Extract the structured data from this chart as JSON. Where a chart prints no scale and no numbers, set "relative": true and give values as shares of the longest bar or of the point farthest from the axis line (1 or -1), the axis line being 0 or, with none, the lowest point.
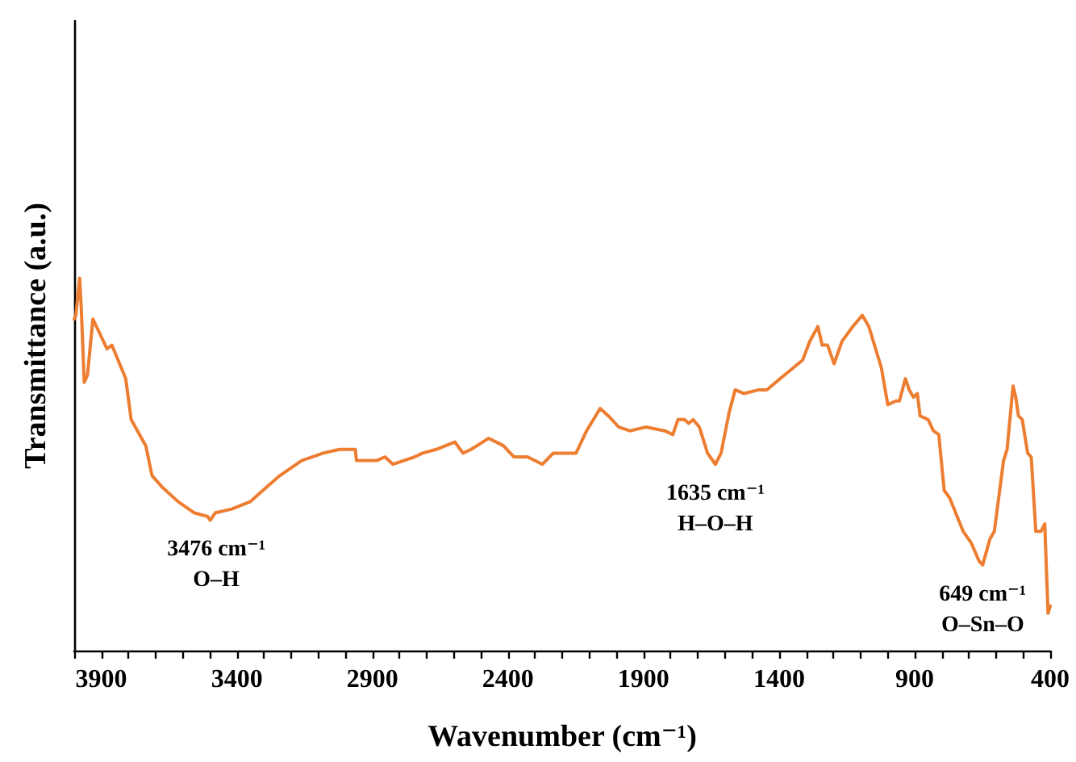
{
  "chart_data": {
    "type": "line",
    "xlabel": "Wavenumber (cm⁻¹)",
    "ylabel": "Transmittance (a.u.)",
    "relative": true,
    "x": [
      4000,
      3994,
      3980,
      3974,
      3963,
      3951,
      3931,
      3879,
      3861,
      3810,
      3790,
      3736,
      3713,
      3677,
      3617,
      3558,
      3508,
      3498,
      3479,
      3419,
      3350,
      3320,
      3241,
      3161,
      3082,
      3022,
      2963,
      2959,
      2884,
      2854,
      2824,
      2784,
      2744,
      2715,
      2665,
      2596,
      2566,
      2536,
      2471,
      2417,
      2378,
      2328,
      2273,
      2233,
      2199,
      2149,
      2110,
      2060,
      2030,
      1991,
      1951,
      1892,
      1822,
      1792,
      1773,
      1749,
      1733,
      1717,
      1694,
      1664,
      1635,
      1614,
      1584,
      1562,
      1529,
      1475,
      1445,
      1396,
      1346,
      1313,
      1287,
      1257,
      1241,
      1221,
      1197,
      1168,
      1128,
      1093,
      1069,
      1023,
      999,
      969,
      956,
      934,
      920,
      904,
      890,
      880,
      850,
      831,
      811,
      791,
      771,
      721,
      692,
      662,
      649,
      622,
      606,
      572,
      559,
      537,
      527,
      517,
      503,
      483,
      470,
      453,
      434,
      420,
      408,
      400
    ],
    "series": [
      {
        "color": "#ed7d31",
        "values": [
          0.89,
          0.9,
          1.0,
          0.92,
          0.72,
          0.74,
          0.89,
          0.81,
          0.82,
          0.73,
          0.62,
          0.55,
          0.47,
          0.44,
          0.4,
          0.37,
          0.36,
          0.35,
          0.37,
          0.38,
          0.4,
          0.42,
          0.47,
          0.51,
          0.53,
          0.54,
          0.54,
          0.51,
          0.51,
          0.52,
          0.5,
          0.51,
          0.52,
          0.53,
          0.54,
          0.56,
          0.53,
          0.54,
          0.57,
          0.55,
          0.52,
          0.52,
          0.5,
          0.53,
          0.53,
          0.53,
          0.59,
          0.65,
          0.63,
          0.6,
          0.59,
          0.6,
          0.59,
          0.58,
          0.62,
          0.62,
          0.61,
          0.62,
          0.6,
          0.53,
          0.5,
          0.53,
          0.64,
          0.7,
          0.69,
          0.7,
          0.7,
          0.73,
          0.76,
          0.78,
          0.83,
          0.87,
          0.82,
          0.82,
          0.77,
          0.83,
          0.87,
          0.9,
          0.87,
          0.76,
          0.66,
          0.67,
          0.67,
          0.73,
          0.7,
          0.68,
          0.69,
          0.63,
          0.62,
          0.59,
          0.58,
          0.43,
          0.41,
          0.32,
          0.29,
          0.24,
          0.23,
          0.3,
          0.32,
          0.51,
          0.54,
          0.71,
          0.68,
          0.63,
          0.62,
          0.53,
          0.52,
          0.32,
          0.32,
          0.34,
          0.1,
          0.12
        ]
      }
    ],
    "xlim": [
      4000,
      400
    ],
    "xticks": [
      {
        "value": 4000,
        "label": null
      },
      3900,
      {
        "value": 3800,
        "label": null
      },
      {
        "value": 3700,
        "label": null
      },
      {
        "value": 3600,
        "label": null
      },
      {
        "value": 3500,
        "label": null
      },
      3400,
      {
        "value": 3300,
        "label": null
      },
      {
        "value": 3200,
        "label": null
      },
      {
        "value": 3100,
        "label": null
      },
      {
        "value": 3000,
        "label": null
      },
      2900,
      {
        "value": 2800,
        "label": null
      },
      {
        "value": 2700,
        "label": null
      },
      {
        "value": 2600,
        "label": null
      },
      {
        "value": 2500,
        "label": null
      },
      2400,
      {
        "value": 2300,
        "label": null
      },
      {
        "value": 2200,
        "label": null
      },
      {
        "value": 2100,
        "label": null
      },
      {
        "value": 2000,
        "label": null
      },
      1900,
      {
        "value": 1800,
        "label": null
      },
      {
        "value": 1700,
        "label": null
      },
      {
        "value": 1600,
        "label": null
      },
      {
        "value": 1500,
        "label": null
      },
      1400,
      {
        "value": 1300,
        "label": null
      },
      {
        "value": 1200,
        "label": null
      },
      {
        "value": 1100,
        "label": null
      },
      {
        "value": 1000,
        "label": null
      },
      900,
      {
        "value": 800,
        "label": null
      },
      {
        "value": 700,
        "label": null
      },
      {
        "value": 600,
        "label": null
      },
      {
        "value": 500,
        "label": null
      },
      400
    ],
    "annotations": [
      {
        "text": "3476 cm⁻¹\nO–H",
        "x": 3476,
        "y": 0.35
      },
      {
        "text": "1635 cm⁻¹\nH–O–H",
        "x": 1635,
        "y": 0.5
      },
      {
        "text": "649 cm⁻¹\nO–Sn–O",
        "x": 649,
        "y": 0.23
      }
    ]
  }
}
